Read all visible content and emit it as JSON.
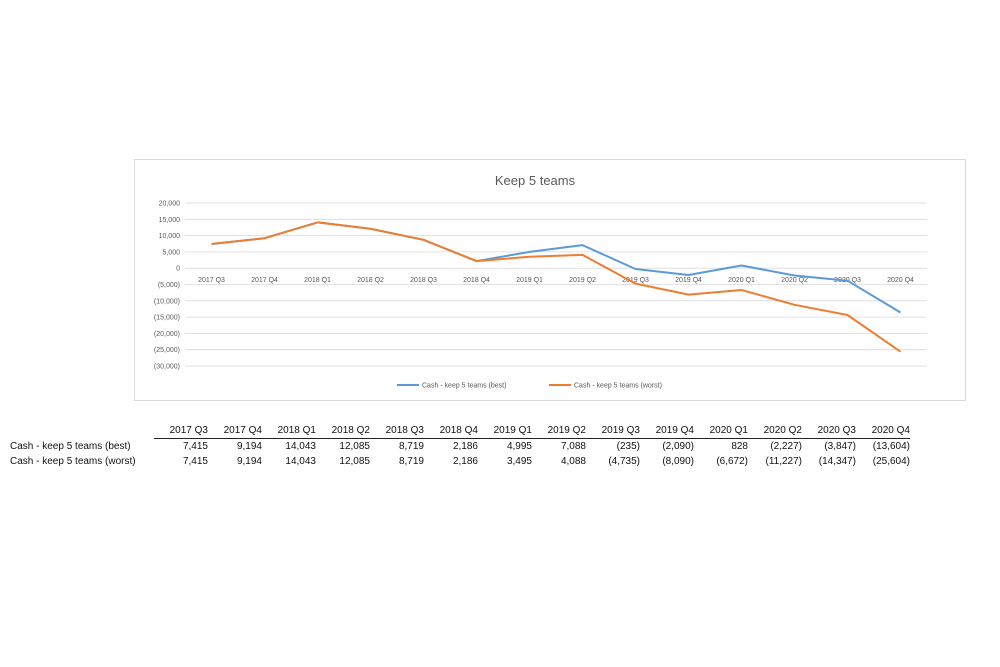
{
  "chart_data": {
    "type": "line",
    "title": "Keep 5 teams",
    "categories": [
      "2017 Q3",
      "2017 Q4",
      "2018 Q1",
      "2018 Q2",
      "2018 Q3",
      "2018 Q4",
      "2019 Q1",
      "2019 Q2",
      "2019 Q3",
      "2019 Q4",
      "2020 Q1",
      "2020 Q2",
      "2020 Q3",
      "2020 Q4"
    ],
    "y_ticks": [
      20000,
      15000,
      10000,
      5000,
      0,
      -5000,
      -10000,
      -15000,
      -20000,
      -25000,
      -30000
    ],
    "y_tick_labels": [
      "20,000",
      "15,000",
      "10,000",
      "5,000",
      "0",
      "(5,000)",
      "(10,000)",
      "(15,000)",
      "(20,000)",
      "(25,000)",
      "(30,000)"
    ],
    "ylim": [
      -30000,
      20000
    ],
    "grid": true,
    "legend_position": "bottom",
    "series": [
      {
        "name": "Cash - keep 5 teams (best)",
        "color": "#5b9bd5",
        "values": [
          7415,
          9194,
          14043,
          12085,
          8719,
          2186,
          4995,
          7088,
          -235,
          -2090,
          828,
          -2227,
          -3847,
          -13604
        ]
      },
      {
        "name": "Cash - keep 5 teams (worst)",
        "color": "#ed7d31",
        "values": [
          7415,
          9194,
          14043,
          12085,
          8719,
          2186,
          3495,
          4088,
          -4735,
          -8090,
          -6672,
          -11227,
          -14347,
          -25604
        ]
      }
    ]
  },
  "table": {
    "columns": [
      "2017 Q3",
      "2017 Q4",
      "2018 Q1",
      "2018 Q2",
      "2018 Q3",
      "2018 Q4",
      "2019 Q1",
      "2019 Q2",
      "2019 Q3",
      "2019 Q4",
      "2020 Q1",
      "2020 Q2",
      "2020 Q3",
      "2020 Q4"
    ],
    "rows": [
      {
        "label": "Cash - keep 5 teams (best)",
        "cells": [
          "7,415",
          "9,194",
          "14,043",
          "12,085",
          "8,719",
          "2,186",
          "4,995",
          "7,088",
          "(235)",
          "(2,090)",
          "828",
          "(2,227)",
          "(3,847)",
          "(13,604)"
        ]
      },
      {
        "label": "Cash - keep 5 teams (worst)",
        "cells": [
          "7,415",
          "9,194",
          "14,043",
          "12,085",
          "8,719",
          "2,186",
          "3,495",
          "4,088",
          "(4,735)",
          "(8,090)",
          "(6,672)",
          "(11,227)",
          "(14,347)",
          "(25,604)"
        ]
      }
    ]
  }
}
